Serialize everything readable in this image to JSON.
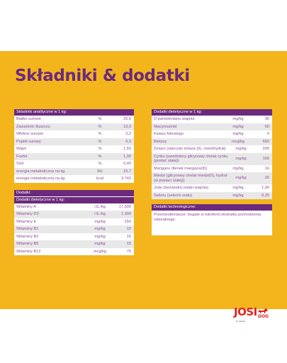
{
  "title": "Składniki & dodatki",
  "analytical": {
    "header": "Składniki analityczne w 1 kg:",
    "rows": [
      {
        "label": "Białko surowe",
        "unit": "%",
        "value": "25,0"
      },
      {
        "label": "Zawartość tłuszczu",
        "unit": "%",
        "value": "13,0"
      },
      {
        "label": "Włókno surowe",
        "unit": "%",
        "value": "2,2"
      },
      {
        "label": "Popiół surowy",
        "unit": "%",
        "value": "6,3"
      },
      {
        "label": "Wapń",
        "unit": "%",
        "value": "1,50"
      },
      {
        "label": "Fosfor",
        "unit": "%",
        "value": "1,00"
      },
      {
        "label": "Sód",
        "unit": "%",
        "value": "0,40"
      },
      {
        "label": "energia metaboliczna na kg",
        "unit": "MJ",
        "value": "15,7"
      },
      {
        "label": "energia metaboliczna na kg",
        "unit": "kcal",
        "value": "3.743"
      }
    ]
  },
  "additives": {
    "header": "Dodatki:",
    "subheader": "Dodatki dietetyczne w 1 kg:",
    "rows": [
      {
        "label": "Witaminy A",
        "unit": "I.E./kg",
        "value": "17.300"
      },
      {
        "label": "Witaminy D3",
        "unit": "I.E./kg",
        "value": "1.300"
      },
      {
        "label": "Witaminy E",
        "unit": "mg/kg",
        "value": "150"
      },
      {
        "label": "Witaminy B1",
        "unit": "mg/kg",
        "value": "10"
      },
      {
        "label": "Witaminy B2",
        "unit": "mg/kg",
        "value": "15"
      },
      {
        "label": "Witaminy B6",
        "unit": "mg/kg",
        "value": "15"
      },
      {
        "label": "Witaminy B12",
        "unit": "mcg/kg",
        "value": "70"
      }
    ]
  },
  "dietetic": {
    "header": "Dodatki dietetyczne w 1 kg:",
    "rows": [
      {
        "label": "D-pantotenianu wapnia",
        "unit": "mg/kg",
        "value": "35"
      },
      {
        "label": "Niacynoamid",
        "unit": "mg/kg",
        "value": "60"
      },
      {
        "label": "Kwasu foliowego",
        "unit": "mg/kg",
        "value": "4"
      },
      {
        "label": "Biotyny",
        "unit": "mcg/kg",
        "value": "650"
      },
      {
        "label": "Żelazo (siarczan żelaza (II), monohydrat)",
        "unit": "mg/kg",
        "value": "200"
      },
      {
        "label": "Cynku (uwodniony glicynowy chelat cynku (postać stała))",
        "unit": "mg/kg",
        "value": "160"
      },
      {
        "label": "Manganu (tlenek manganu(II))",
        "unit": "mg/kg",
        "value": "16"
      },
      {
        "label": "Miedzi (glicynowy chelat miedzi(II), hydrat (w postaci stałej))",
        "unit": "mg/kg",
        "value": "20"
      },
      {
        "label": "Jodu (bezwodny jodan wapnia)",
        "unit": "mg/kg",
        "value": "1,90"
      },
      {
        "label": "Selenu (selenin sodu)",
        "unit": "mg/kg",
        "value": "0,25"
      }
    ]
  },
  "technological": {
    "header": "Dodatki technologiczne:",
    "text": "Przeciwutleniacze: bogate w tokoferol ekstrakty pochodzenia naturalnego."
  },
  "logo": {
    "main": "JOSI",
    "sub": "DOG",
    "tag": "by Josera"
  },
  "colors": {
    "brand_yellow": "#f3b51b",
    "brand_purple": "#6b2a7d",
    "logo_red": "#e2231a"
  }
}
